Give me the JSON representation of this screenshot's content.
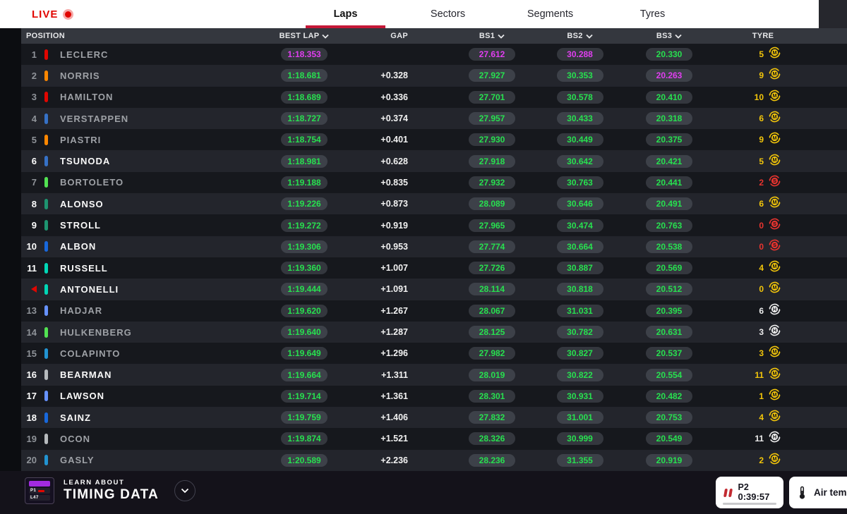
{
  "topbar": {
    "live_label": "LIVE",
    "tabs": [
      {
        "label": "Laps",
        "active": true
      },
      {
        "label": "Sectors",
        "active": false
      },
      {
        "label": "Segments",
        "active": false
      },
      {
        "label": "Tyres",
        "active": false
      }
    ]
  },
  "table_header": {
    "position": "POSITION",
    "best_lap": "BEST LAP",
    "gap": "GAP",
    "bs1": "BS1",
    "bs2": "BS2",
    "bs3": "BS3",
    "tyre": "TYRE"
  },
  "colors": {
    "accent_red": "#e10600",
    "fast_green": "#27e04f",
    "fastest_purple": "#e03ef0",
    "compound_soft": "#e8342f",
    "compound_medium": "#f2c50a",
    "compound_hard": "#ededed"
  },
  "rows": [
    {
      "pos": "1",
      "pos_arrow": false,
      "name": "LECLERC",
      "team_color": "#e10600",
      "bold": false,
      "best": "1:18.353",
      "best_fast": true,
      "gap": "",
      "bs1": "27.612",
      "bs1_fast": true,
      "bs2": "30.288",
      "bs2_fast": true,
      "bs3": "20.330",
      "bs3_fast": false,
      "laps": "5",
      "compound": "M"
    },
    {
      "pos": "2",
      "pos_arrow": false,
      "name": "NORRIS",
      "team_color": "#ff8700",
      "bold": false,
      "best": "1:18.681",
      "best_fast": false,
      "gap": "+0.328",
      "bs1": "27.927",
      "bs1_fast": false,
      "bs2": "30.353",
      "bs2_fast": false,
      "bs3": "20.263",
      "bs3_fast": true,
      "laps": "9",
      "compound": "M"
    },
    {
      "pos": "3",
      "pos_arrow": false,
      "name": "HAMILTON",
      "team_color": "#e10600",
      "bold": false,
      "best": "1:18.689",
      "best_fast": false,
      "gap": "+0.336",
      "bs1": "27.701",
      "bs1_fast": false,
      "bs2": "30.578",
      "bs2_fast": false,
      "bs3": "20.410",
      "bs3_fast": false,
      "laps": "10",
      "compound": "M"
    },
    {
      "pos": "4",
      "pos_arrow": false,
      "name": "VERSTAPPEN",
      "team_color": "#3671c6",
      "bold": false,
      "best": "1:18.727",
      "best_fast": false,
      "gap": "+0.374",
      "bs1": "27.957",
      "bs1_fast": false,
      "bs2": "30.433",
      "bs2_fast": false,
      "bs3": "20.318",
      "bs3_fast": false,
      "laps": "6",
      "compound": "M"
    },
    {
      "pos": "5",
      "pos_arrow": false,
      "name": "PIASTRI",
      "team_color": "#ff8700",
      "bold": false,
      "best": "1:18.754",
      "best_fast": false,
      "gap": "+0.401",
      "bs1": "27.930",
      "bs1_fast": false,
      "bs2": "30.449",
      "bs2_fast": false,
      "bs3": "20.375",
      "bs3_fast": false,
      "laps": "9",
      "compound": "M"
    },
    {
      "pos": "6",
      "pos_arrow": false,
      "name": "TSUNODA",
      "team_color": "#3671c6",
      "bold": true,
      "best": "1:18.981",
      "best_fast": false,
      "gap": "+0.628",
      "bs1": "27.918",
      "bs1_fast": false,
      "bs2": "30.642",
      "bs2_fast": false,
      "bs3": "20.421",
      "bs3_fast": false,
      "laps": "5",
      "compound": "M"
    },
    {
      "pos": "7",
      "pos_arrow": false,
      "name": "BORTOLETO",
      "team_color": "#52e252",
      "bold": false,
      "best": "1:19.188",
      "best_fast": false,
      "gap": "+0.835",
      "bs1": "27.932",
      "bs1_fast": false,
      "bs2": "30.763",
      "bs2_fast": false,
      "bs3": "20.441",
      "bs3_fast": false,
      "laps": "2",
      "compound": "S"
    },
    {
      "pos": "8",
      "pos_arrow": false,
      "name": "ALONSO",
      "team_color": "#1e9470",
      "bold": true,
      "best": "1:19.226",
      "best_fast": false,
      "gap": "+0.873",
      "bs1": "28.089",
      "bs1_fast": false,
      "bs2": "30.646",
      "bs2_fast": false,
      "bs3": "20.491",
      "bs3_fast": false,
      "laps": "6",
      "compound": "M"
    },
    {
      "pos": "9",
      "pos_arrow": false,
      "name": "STROLL",
      "team_color": "#1e9470",
      "bold": true,
      "best": "1:19.272",
      "best_fast": false,
      "gap": "+0.919",
      "bs1": "27.965",
      "bs1_fast": false,
      "bs2": "30.474",
      "bs2_fast": false,
      "bs3": "20.763",
      "bs3_fast": false,
      "laps": "0",
      "compound": "S"
    },
    {
      "pos": "10",
      "pos_arrow": false,
      "name": "ALBON",
      "team_color": "#1868db",
      "bold": true,
      "best": "1:19.306",
      "best_fast": false,
      "gap": "+0.953",
      "bs1": "27.774",
      "bs1_fast": false,
      "bs2": "30.664",
      "bs2_fast": false,
      "bs3": "20.538",
      "bs3_fast": false,
      "laps": "0",
      "compound": "S"
    },
    {
      "pos": "11",
      "pos_arrow": false,
      "name": "RUSSELL",
      "team_color": "#00d7b6",
      "bold": true,
      "best": "1:19.360",
      "best_fast": false,
      "gap": "+1.007",
      "bs1": "27.726",
      "bs1_fast": false,
      "bs2": "30.887",
      "bs2_fast": false,
      "bs3": "20.569",
      "bs3_fast": false,
      "laps": "4",
      "compound": "M"
    },
    {
      "pos": "12",
      "pos_arrow": true,
      "name": "ANTONELLI",
      "team_color": "#00d7b6",
      "bold": true,
      "best": "1:19.444",
      "best_fast": false,
      "gap": "+1.091",
      "bs1": "28.114",
      "bs1_fast": false,
      "bs2": "30.818",
      "bs2_fast": false,
      "bs3": "20.512",
      "bs3_fast": false,
      "laps": "0",
      "compound": "M"
    },
    {
      "pos": "13",
      "pos_arrow": false,
      "name": "HADJAR",
      "team_color": "#6692ff",
      "bold": false,
      "best": "1:19.620",
      "best_fast": false,
      "gap": "+1.267",
      "bs1": "28.067",
      "bs1_fast": false,
      "bs2": "31.031",
      "bs2_fast": false,
      "bs3": "20.395",
      "bs3_fast": false,
      "laps": "6",
      "compound": "H"
    },
    {
      "pos": "14",
      "pos_arrow": false,
      "name": "HULKENBERG",
      "team_color": "#52e252",
      "bold": false,
      "best": "1:19.640",
      "best_fast": false,
      "gap": "+1.287",
      "bs1": "28.125",
      "bs1_fast": false,
      "bs2": "30.782",
      "bs2_fast": false,
      "bs3": "20.631",
      "bs3_fast": false,
      "laps": "3",
      "compound": "H"
    },
    {
      "pos": "15",
      "pos_arrow": false,
      "name": "COLAPINTO",
      "team_color": "#2293d1",
      "bold": false,
      "best": "1:19.649",
      "best_fast": false,
      "gap": "+1.296",
      "bs1": "27.982",
      "bs1_fast": false,
      "bs2": "30.827",
      "bs2_fast": false,
      "bs3": "20.537",
      "bs3_fast": false,
      "laps": "3",
      "compound": "M"
    },
    {
      "pos": "16",
      "pos_arrow": false,
      "name": "BEARMAN",
      "team_color": "#b6babd",
      "bold": true,
      "best": "1:19.664",
      "best_fast": false,
      "gap": "+1.311",
      "bs1": "28.019",
      "bs1_fast": false,
      "bs2": "30.822",
      "bs2_fast": false,
      "bs3": "20.554",
      "bs3_fast": false,
      "laps": "11",
      "compound": "M"
    },
    {
      "pos": "17",
      "pos_arrow": false,
      "name": "LAWSON",
      "team_color": "#6692ff",
      "bold": true,
      "best": "1:19.714",
      "best_fast": false,
      "gap": "+1.361",
      "bs1": "28.301",
      "bs1_fast": false,
      "bs2": "30.931",
      "bs2_fast": false,
      "bs3": "20.482",
      "bs3_fast": false,
      "laps": "1",
      "compound": "M"
    },
    {
      "pos": "18",
      "pos_arrow": false,
      "name": "SAINZ",
      "team_color": "#1868db",
      "bold": true,
      "best": "1:19.759",
      "best_fast": false,
      "gap": "+1.406",
      "bs1": "27.832",
      "bs1_fast": false,
      "bs2": "31.001",
      "bs2_fast": false,
      "bs3": "20.753",
      "bs3_fast": false,
      "laps": "4",
      "compound": "M"
    },
    {
      "pos": "19",
      "pos_arrow": false,
      "name": "OCON",
      "team_color": "#b6babd",
      "bold": false,
      "best": "1:19.874",
      "best_fast": false,
      "gap": "+1.521",
      "bs1": "28.326",
      "bs1_fast": false,
      "bs2": "30.999",
      "bs2_fast": false,
      "bs3": "20.549",
      "bs3_fast": false,
      "laps": "11",
      "compound": "H"
    },
    {
      "pos": "20",
      "pos_arrow": false,
      "name": "GASLY",
      "team_color": "#2293d1",
      "bold": false,
      "best": "1:20.589",
      "best_fast": false,
      "gap": "+2.236",
      "bs1": "28.236",
      "bs1_fast": false,
      "bs2": "31.355",
      "bs2_fast": false,
      "bs3": "20.919",
      "bs3_fast": false,
      "laps": "2",
      "compound": "M"
    }
  ],
  "footer": {
    "learn_about": "LEARN ABOUT",
    "timing_data": "TIMING DATA",
    "logo": {
      "line2": "P1",
      "line3": "L47"
    },
    "session": {
      "label": "P2",
      "time": "0:39:57"
    },
    "air_temp_label": "Air temp"
  }
}
